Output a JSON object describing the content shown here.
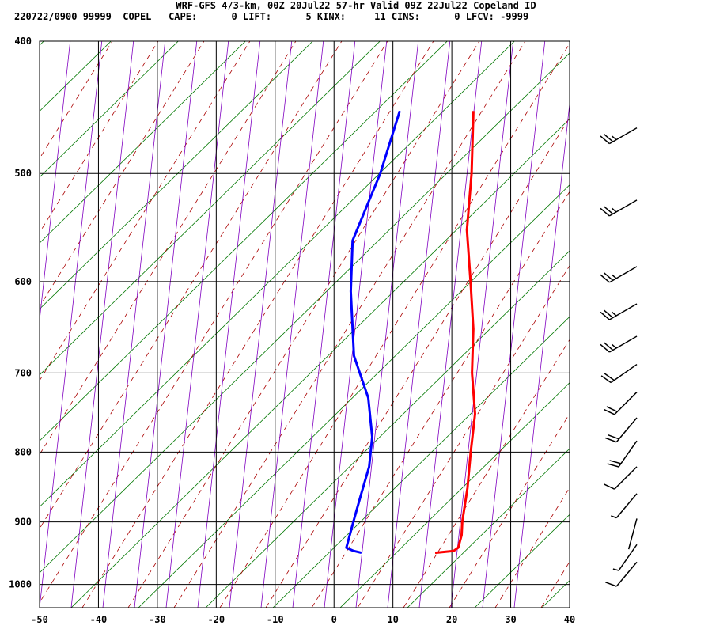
{
  "header": {
    "line1": "WRF-GFS 4/3-km, 00Z 20Jul22 57-hr Valid 09Z 22Jul22 Copeland ID",
    "line2": "220722/0900 99999  COPEL   CAPE:      0 LIFT:      5 KINX:     11 CINS:      0 LFCV: -9999"
  },
  "colors": {
    "temperature": "#ff0000",
    "dewpoint": "#0000ff",
    "dry_adiabat": "#aa0000",
    "moist_adiabat": "#8000c0",
    "isotherm_skew": "#007700",
    "grid": "#000000"
  },
  "chart_data": {
    "type": "line",
    "title": "",
    "xlabel": "",
    "ylabel": "",
    "x_ticks": [
      -50,
      -40,
      -30,
      -20,
      -10,
      0,
      10,
      20,
      30,
      40
    ],
    "y_ticks": [
      400,
      500,
      600,
      700,
      800,
      900,
      1000
    ],
    "xlim": [
      -50,
      40
    ],
    "ylim": [
      400,
      1040
    ],
    "y_scale": "log-pressure",
    "grid": true,
    "series": [
      {
        "key": "temperature",
        "color": "#ff0000",
        "points": [
          [
            -18.5,
            450
          ],
          [
            -13.5,
            500
          ],
          [
            -9.5,
            550
          ],
          [
            -4.5,
            600
          ],
          [
            0,
            650
          ],
          [
            3.5,
            700
          ],
          [
            7.5,
            750
          ],
          [
            10,
            800
          ],
          [
            12.5,
            850
          ],
          [
            14.5,
            900
          ],
          [
            15.5,
            920
          ],
          [
            16,
            940
          ],
          [
            15.5,
            945
          ],
          [
            12.5,
            948
          ]
        ]
      },
      {
        "key": "dewpoint",
        "color": "#0000ff",
        "points": [
          [
            -31,
            450
          ],
          [
            -29,
            500
          ],
          [
            -28,
            560
          ],
          [
            -24,
            610
          ],
          [
            -18,
            680
          ],
          [
            -12,
            730
          ],
          [
            -8,
            780
          ],
          [
            -6,
            820
          ],
          [
            -5,
            860
          ],
          [
            -4,
            900
          ],
          [
            -3,
            940
          ],
          [
            -1.5,
            945
          ],
          [
            0,
            948
          ]
        ]
      }
    ],
    "wind_barbs": [
      {
        "p": 463,
        "dir": 240,
        "speed": 25
      },
      {
        "p": 523,
        "dir": 240,
        "speed": 25
      },
      {
        "p": 585,
        "dir": 240,
        "speed": 25
      },
      {
        "p": 623,
        "dir": 240,
        "speed": 25
      },
      {
        "p": 658,
        "dir": 240,
        "speed": 25
      },
      {
        "p": 690,
        "dir": 235,
        "speed": 20
      },
      {
        "p": 723,
        "dir": 225,
        "speed": 20
      },
      {
        "p": 755,
        "dir": 220,
        "speed": 20
      },
      {
        "p": 785,
        "dir": 215,
        "speed": 20
      },
      {
        "p": 820,
        "dir": 225,
        "speed": 10
      },
      {
        "p": 858,
        "dir": 220,
        "speed": 5
      },
      {
        "p": 895,
        "dir": 195,
        "speed": 0
      },
      {
        "p": 935,
        "dir": 215,
        "speed": 5
      },
      {
        "p": 963,
        "dir": 220,
        "speed": 10
      }
    ]
  }
}
